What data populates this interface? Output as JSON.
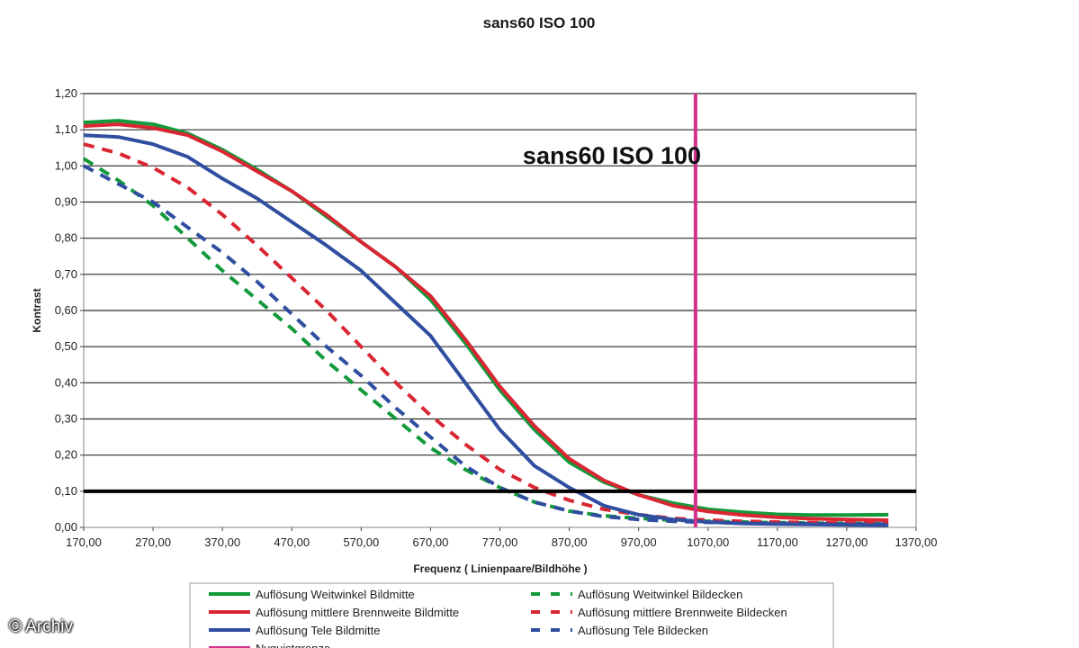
{
  "chart_data": {
    "type": "line",
    "title": "sans60   ISO 100",
    "inner_title": "sans60   ISO 100",
    "xlabel": "Frequenz ( Linienpaare/Bildhöhe )",
    "ylabel": "Kontrast",
    "xlim": [
      170,
      1370
    ],
    "ylim": [
      0,
      1.2
    ],
    "x_ticks": [
      "170,00",
      "270,00",
      "370,00",
      "470,00",
      "570,00",
      "670,00",
      "770,00",
      "870,00",
      "970,00",
      "1070,00",
      "1170,00",
      "1270,00",
      "1370,00"
    ],
    "y_ticks": [
      "0,00",
      "0,10",
      "0,20",
      "0,30",
      "0,40",
      "0,50",
      "0,60",
      "0,70",
      "0,80",
      "0,90",
      "1,00",
      "1,10",
      "1,20"
    ],
    "grid": "horizontal",
    "reference_lines": [
      {
        "name": "0,10 threshold",
        "axis": "y",
        "value": 0.1,
        "color": "#000000"
      },
      {
        "name": "Nyquistgrenze",
        "axis": "x",
        "value": 1052,
        "color": "#d4308c"
      }
    ],
    "series": [
      {
        "name": "Auflösung Weitwinkel Bildmitte",
        "color": "#129a3a",
        "dash": false,
        "points": [
          [
            170,
            1.12
          ],
          [
            220,
            1.125
          ],
          [
            270,
            1.115
          ],
          [
            320,
            1.09
          ],
          [
            370,
            1.045
          ],
          [
            420,
            0.99
          ],
          [
            470,
            0.93
          ],
          [
            520,
            0.86
          ],
          [
            570,
            0.79
          ],
          [
            620,
            0.72
          ],
          [
            670,
            0.63
          ],
          [
            720,
            0.51
          ],
          [
            770,
            0.38
          ],
          [
            820,
            0.27
          ],
          [
            870,
            0.18
          ],
          [
            920,
            0.125
          ],
          [
            970,
            0.09
          ],
          [
            1020,
            0.067
          ],
          [
            1070,
            0.05
          ],
          [
            1120,
            0.042
          ],
          [
            1170,
            0.036
          ],
          [
            1220,
            0.034
          ],
          [
            1270,
            0.034
          ],
          [
            1330,
            0.035
          ]
        ]
      },
      {
        "name": "Auflösung mittlere Brennweite Bildmitte",
        "color": "#d92632",
        "dash": false,
        "points": [
          [
            170,
            1.11
          ],
          [
            220,
            1.115
          ],
          [
            270,
            1.105
          ],
          [
            320,
            1.085
          ],
          [
            370,
            1.04
          ],
          [
            420,
            0.985
          ],
          [
            470,
            0.93
          ],
          [
            520,
            0.865
          ],
          [
            570,
            0.79
          ],
          [
            620,
            0.72
          ],
          [
            670,
            0.64
          ],
          [
            720,
            0.52
          ],
          [
            770,
            0.39
          ],
          [
            820,
            0.28
          ],
          [
            870,
            0.19
          ],
          [
            920,
            0.13
          ],
          [
            970,
            0.09
          ],
          [
            1020,
            0.06
          ],
          [
            1070,
            0.044
          ],
          [
            1120,
            0.034
          ],
          [
            1170,
            0.028
          ],
          [
            1220,
            0.024
          ],
          [
            1270,
            0.022
          ],
          [
            1330,
            0.02
          ]
        ]
      },
      {
        "name": "Auflösung Tele Bildmitte",
        "color": "#2f4ea0",
        "dash": false,
        "points": [
          [
            170,
            1.085
          ],
          [
            220,
            1.08
          ],
          [
            270,
            1.06
          ],
          [
            320,
            1.025
          ],
          [
            370,
            0.965
          ],
          [
            420,
            0.91
          ],
          [
            470,
            0.845
          ],
          [
            520,
            0.78
          ],
          [
            570,
            0.71
          ],
          [
            620,
            0.62
          ],
          [
            670,
            0.53
          ],
          [
            720,
            0.4
          ],
          [
            770,
            0.27
          ],
          [
            820,
            0.17
          ],
          [
            870,
            0.11
          ],
          [
            920,
            0.06
          ],
          [
            970,
            0.035
          ],
          [
            1020,
            0.022
          ],
          [
            1070,
            0.015
          ],
          [
            1120,
            0.011
          ],
          [
            1170,
            0.009
          ],
          [
            1220,
            0.008
          ],
          [
            1270,
            0.007
          ],
          [
            1330,
            0.006
          ]
        ]
      },
      {
        "name": "Nyquistgrenze",
        "color": "#d4308c",
        "dash": false,
        "points": [
          [
            1052,
            0
          ],
          [
            1052,
            1.2
          ]
        ]
      },
      {
        "name": "Auflösung Weitwinkel Bildecken",
        "color": "#129a3a",
        "dash": true,
        "points": [
          [
            170,
            1.02
          ],
          [
            220,
            0.96
          ],
          [
            270,
            0.89
          ],
          [
            320,
            0.8
          ],
          [
            370,
            0.71
          ],
          [
            420,
            0.63
          ],
          [
            470,
            0.55
          ],
          [
            520,
            0.46
          ],
          [
            570,
            0.38
          ],
          [
            620,
            0.3
          ],
          [
            670,
            0.22
          ],
          [
            720,
            0.16
          ],
          [
            770,
            0.11
          ],
          [
            820,
            0.07
          ],
          [
            870,
            0.045
          ],
          [
            920,
            0.032
          ],
          [
            970,
            0.025
          ],
          [
            1020,
            0.02
          ],
          [
            1070,
            0.017
          ],
          [
            1120,
            0.015
          ],
          [
            1170,
            0.013
          ],
          [
            1220,
            0.012
          ],
          [
            1270,
            0.011
          ],
          [
            1330,
            0.01
          ]
        ]
      },
      {
        "name": "Auflösung mittlere Brennweite Bildecken",
        "color": "#d92632",
        "dash": true,
        "points": [
          [
            170,
            1.06
          ],
          [
            220,
            1.035
          ],
          [
            270,
            0.995
          ],
          [
            320,
            0.94
          ],
          [
            370,
            0.865
          ],
          [
            420,
            0.78
          ],
          [
            470,
            0.69
          ],
          [
            520,
            0.6
          ],
          [
            570,
            0.5
          ],
          [
            620,
            0.4
          ],
          [
            670,
            0.31
          ],
          [
            720,
            0.23
          ],
          [
            770,
            0.16
          ],
          [
            820,
            0.11
          ],
          [
            870,
            0.075
          ],
          [
            920,
            0.05
          ],
          [
            970,
            0.035
          ],
          [
            1020,
            0.025
          ],
          [
            1070,
            0.02
          ],
          [
            1120,
            0.017
          ],
          [
            1170,
            0.015
          ],
          [
            1220,
            0.013
          ],
          [
            1270,
            0.012
          ],
          [
            1330,
            0.011
          ]
        ]
      },
      {
        "name": "Auflösung Tele Bildecken",
        "color": "#2f4ea0",
        "dash": true,
        "points": [
          [
            170,
            1.0
          ],
          [
            220,
            0.95
          ],
          [
            270,
            0.9
          ],
          [
            320,
            0.83
          ],
          [
            370,
            0.76
          ],
          [
            420,
            0.68
          ],
          [
            470,
            0.59
          ],
          [
            520,
            0.5
          ],
          [
            570,
            0.42
          ],
          [
            620,
            0.33
          ],
          [
            670,
            0.25
          ],
          [
            720,
            0.17
          ],
          [
            770,
            0.11
          ],
          [
            820,
            0.07
          ],
          [
            870,
            0.045
          ],
          [
            920,
            0.03
          ],
          [
            970,
            0.022
          ],
          [
            1020,
            0.017
          ],
          [
            1070,
            0.014
          ],
          [
            1120,
            0.012
          ],
          [
            1170,
            0.011
          ],
          [
            1220,
            0.01
          ],
          [
            1270,
            0.009
          ],
          [
            1330,
            0.009
          ]
        ]
      }
    ]
  },
  "watermark": "© Archiv"
}
